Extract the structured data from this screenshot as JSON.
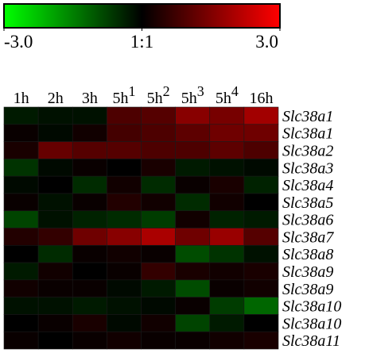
{
  "chart_data": {
    "type": "heatmap",
    "colorbar": {
      "colors": [
        "#00ff00",
        "#000000",
        "#ff0000"
      ],
      "clim": [
        -3,
        3
      ],
      "ticks": [
        {
          "value": -3,
          "label": "-3.0"
        },
        {
          "value": 0,
          "label": "1:1"
        },
        {
          "value": 3,
          "label": "3.0"
        }
      ]
    },
    "columns": [
      {
        "text": "1h"
      },
      {
        "text": "2h"
      },
      {
        "text": "3h"
      },
      {
        "text": "5h",
        "sup": "1"
      },
      {
        "text": "5h",
        "sup": "2"
      },
      {
        "text": "5h",
        "sup": "3"
      },
      {
        "text": "5h",
        "sup": "4"
      },
      {
        "text": "16h"
      }
    ],
    "rows": [
      "Slc38a1",
      "Slc38a1",
      "Slc38a2",
      "Slc38a3",
      "Slc38a4",
      "Slc38a5",
      "Slc38a6",
      "Slc38a7",
      "Slc38a8",
      "Slc38a9",
      "Slc38a9",
      "Slc38a10",
      "Slc38a10",
      "Slc38a11"
    ],
    "values": [
      [
        -0.3,
        -0.2,
        -0.2,
        0.9,
        1.0,
        1.6,
        1.4,
        1.9
      ],
      [
        0.1,
        -0.1,
        0.2,
        0.8,
        0.9,
        1.1,
        1.3,
        1.3
      ],
      [
        0.3,
        1.2,
        1.0,
        1.0,
        0.9,
        0.9,
        1.1,
        0.9
      ],
      [
        -0.6,
        -0.1,
        0.1,
        0.0,
        0.3,
        -0.3,
        -0.2,
        -0.1
      ],
      [
        -0.1,
        0.0,
        -0.5,
        0.2,
        -0.5,
        0.1,
        0.3,
        -0.4
      ],
      [
        0.1,
        -0.2,
        0.1,
        0.4,
        0.2,
        -0.5,
        0.2,
        0.0
      ],
      [
        -0.8,
        -0.2,
        -0.4,
        -0.5,
        -0.7,
        0.2,
        -0.4,
        -0.3
      ],
      [
        0.4,
        0.6,
        1.3,
        1.6,
        2.0,
        1.3,
        1.8,
        1.0
      ],
      [
        0.0,
        -0.5,
        0.1,
        0.2,
        0.1,
        -0.9,
        -0.6,
        -0.2
      ],
      [
        -0.3,
        0.2,
        0.0,
        0.1,
        0.6,
        0.3,
        0.2,
        0.3
      ],
      [
        0.2,
        0.1,
        0.1,
        -0.1,
        -0.3,
        -0.9,
        0.1,
        0.2
      ],
      [
        -0.2,
        -0.2,
        -0.3,
        -0.2,
        -0.1,
        0.1,
        -0.7,
        -1.2
      ],
      [
        0.0,
        0.1,
        0.3,
        -0.1,
        0.2,
        -0.8,
        -0.3,
        0.0
      ],
      [
        0.1,
        0.0,
        0.1,
        0.2,
        0.1,
        0.1,
        0.2,
        0.3
      ]
    ]
  }
}
